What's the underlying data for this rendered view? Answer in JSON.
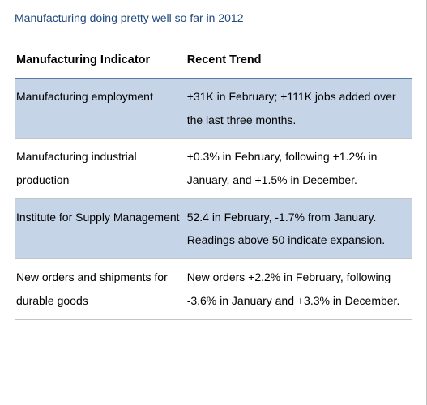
{
  "title": "Manufacturing doing pretty well so far in 2012",
  "colors": {
    "title_color": "#1f497d",
    "band_bg": "#c6d4e8",
    "header_border": "#5b7ca8",
    "row_border": "#c5c5c5",
    "text": "#000000",
    "page_bg": "#ffffff"
  },
  "typography": {
    "family": "Arial",
    "title_size_pt": 10.5,
    "header_size_pt": 11,
    "cell_size_pt": 10.5,
    "line_height": 2.05
  },
  "table": {
    "columns": [
      "Manufacturing Indicator",
      "Recent Trend"
    ],
    "col_widths_pct": [
      43,
      57
    ],
    "rows": [
      {
        "band": true,
        "indicator": "Manufacturing employment",
        "trend": "+31K in February; +111K jobs added over the last three months."
      },
      {
        "band": false,
        "indicator": "Manufacturing industrial production",
        "trend": "+0.3% in February, following +1.2% in January, and +1.5% in December."
      },
      {
        "band": true,
        "indicator": "Institute for Supply Management",
        "trend": "52.4 in February, -1.7% from January.  Readings above 50 indicate expansion."
      },
      {
        "band": false,
        "indicator": "New orders and shipments for durable goods",
        "trend": "New orders +2.2% in February, following -3.6% in January and +3.3% in December."
      }
    ]
  }
}
